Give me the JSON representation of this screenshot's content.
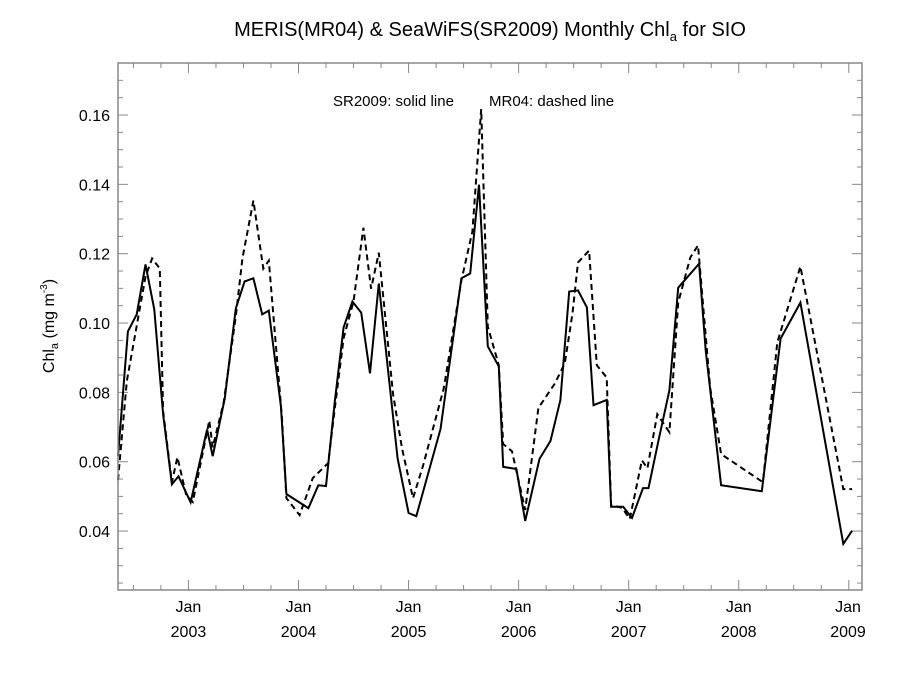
{
  "chart_data": {
    "type": "line",
    "title": "MERIS(MR04) & SeaWiFS(SR2009) Monthly Chl",
    "title_sub": "a",
    "title_tail": " for SIO",
    "annotation_left": "SR2009: solid line",
    "annotation_right": "MR04: dashed line",
    "ylabel_main": "Chl",
    "ylabel_sub": "a",
    "ylabel_units": " (mg m",
    "ylabel_sup": "-3",
    "ylabel_close": ")",
    "ylim": [
      0.023,
      0.175
    ],
    "xlim": [
      2002.36,
      2009.12
    ],
    "yticks": [
      0.04,
      0.06,
      0.08,
      0.1,
      0.12,
      0.14,
      0.16
    ],
    "ytick_labels": [
      "0.04",
      "0.06",
      "0.08",
      "0.10",
      "0.12",
      "0.14",
      "0.16"
    ],
    "yminor_step": 0.005,
    "xticks": [
      2003,
      2004,
      2005,
      2006,
      2007,
      2008,
      2009
    ],
    "xtick_labels": [
      {
        "month": "Jan",
        "year": "2003"
      },
      {
        "month": "Jan",
        "year": "2004"
      },
      {
        "month": "Jan",
        "year": "2005"
      },
      {
        "month": "Jan",
        "year": "2006"
      },
      {
        "month": "Jan",
        "year": "2007"
      },
      {
        "month": "Jan",
        "year": "2008"
      },
      {
        "month": "Jan",
        "year": "2009"
      }
    ],
    "xminor_step": 0.25,
    "grid": false,
    "series": [
      {
        "name": "SR2009",
        "style": "solid",
        "color": "#000000",
        "points": [
          [
            2002.36,
            0.0616
          ],
          [
            2002.45,
            0.0976
          ],
          [
            2002.53,
            0.1025
          ],
          [
            2002.61,
            0.1169
          ],
          [
            2002.69,
            0.1039
          ],
          [
            2002.77,
            0.0737
          ],
          [
            2002.85,
            0.0535
          ],
          [
            2002.91,
            0.0558
          ],
          [
            2003.02,
            0.0483
          ],
          [
            2003.17,
            0.0693
          ],
          [
            2003.22,
            0.0616
          ],
          [
            2003.33,
            0.0783
          ],
          [
            2003.43,
            0.1042
          ],
          [
            2003.51,
            0.112
          ],
          [
            2003.59,
            0.1129
          ],
          [
            2003.67,
            0.1025
          ],
          [
            2003.73,
            0.1036
          ],
          [
            2003.84,
            0.076
          ],
          [
            2003.89,
            0.0507
          ],
          [
            2004.09,
            0.0466
          ],
          [
            2004.18,
            0.0532
          ],
          [
            2004.25,
            0.053
          ],
          [
            2004.33,
            0.0774
          ],
          [
            2004.41,
            0.0987
          ],
          [
            2004.49,
            0.1062
          ],
          [
            2004.57,
            0.103
          ],
          [
            2004.65,
            0.0855
          ],
          [
            2004.73,
            0.1114
          ],
          [
            2004.82,
            0.0846
          ],
          [
            2004.9,
            0.061
          ],
          [
            2005.0,
            0.0452
          ],
          [
            2005.07,
            0.0443
          ],
          [
            2005.29,
            0.0694
          ],
          [
            2005.48,
            0.1129
          ],
          [
            2005.56,
            0.1143
          ],
          [
            2005.64,
            0.1399
          ],
          [
            2005.72,
            0.0933
          ],
          [
            2005.82,
            0.0875
          ],
          [
            2005.86,
            0.0585
          ],
          [
            2005.98,
            0.0579
          ],
          [
            2006.06,
            0.0429
          ],
          [
            2006.19,
            0.0608
          ],
          [
            2006.29,
            0.066
          ],
          [
            2006.38,
            0.0778
          ],
          [
            2006.46,
            0.1091
          ],
          [
            2006.54,
            0.1094
          ],
          [
            2006.62,
            0.1045
          ],
          [
            2006.68,
            0.0763
          ],
          [
            2006.8,
            0.0778
          ],
          [
            2006.84,
            0.047
          ],
          [
            2006.95,
            0.047
          ],
          [
            2007.03,
            0.0438
          ],
          [
            2007.13,
            0.0524
          ],
          [
            2007.18,
            0.0524
          ],
          [
            2007.27,
            0.066
          ],
          [
            2007.37,
            0.0806
          ],
          [
            2007.45,
            0.1102
          ],
          [
            2007.64,
            0.1171
          ],
          [
            2007.7,
            0.0921
          ],
          [
            2007.84,
            0.0532
          ],
          [
            2008.21,
            0.0515
          ],
          [
            2008.38,
            0.0955
          ],
          [
            2008.56,
            0.1059
          ],
          [
            2008.95,
            0.0363
          ],
          [
            2009.03,
            0.0401
          ]
        ]
      },
      {
        "name": "MR04",
        "style": "dashed",
        "color": "#000000",
        "points": [
          [
            2002.36,
            0.0547
          ],
          [
            2002.44,
            0.0832
          ],
          [
            2002.61,
            0.1134
          ],
          [
            2002.67,
            0.1186
          ],
          [
            2002.74,
            0.1157
          ],
          [
            2002.77,
            0.0746
          ],
          [
            2002.85,
            0.0541
          ],
          [
            2002.9,
            0.0613
          ],
          [
            2002.98,
            0.0504
          ],
          [
            2003.04,
            0.0484
          ],
          [
            2003.19,
            0.0719
          ],
          [
            2003.22,
            0.0642
          ],
          [
            2003.32,
            0.0771
          ],
          [
            2003.43,
            0.1019
          ],
          [
            2003.49,
            0.1186
          ],
          [
            2003.59,
            0.1353
          ],
          [
            2003.68,
            0.1157
          ],
          [
            2003.73,
            0.118
          ],
          [
            2003.85,
            0.0725
          ],
          [
            2003.89,
            0.0495
          ],
          [
            2004.01,
            0.0446
          ],
          [
            2004.13,
            0.0553
          ],
          [
            2004.27,
            0.0596
          ],
          [
            2004.33,
            0.0754
          ],
          [
            2004.41,
            0.0956
          ],
          [
            2004.5,
            0.1062
          ],
          [
            2004.59,
            0.1275
          ],
          [
            2004.66,
            0.1099
          ],
          [
            2004.73,
            0.1203
          ],
          [
            2004.86,
            0.0794
          ],
          [
            2004.94,
            0.0639
          ],
          [
            2005.04,
            0.0495
          ],
          [
            2005.13,
            0.0587
          ],
          [
            2005.32,
            0.0812
          ],
          [
            2005.48,
            0.1123
          ],
          [
            2005.58,
            0.1264
          ],
          [
            2005.66,
            0.1617
          ],
          [
            2005.72,
            0.099
          ],
          [
            2005.82,
            0.0878
          ],
          [
            2005.86,
            0.0651
          ],
          [
            2005.94,
            0.063
          ],
          [
            2006.06,
            0.0461
          ],
          [
            2006.18,
            0.0755
          ],
          [
            2006.33,
            0.0826
          ],
          [
            2006.42,
            0.0884
          ],
          [
            2006.49,
            0.1028
          ],
          [
            2006.54,
            0.1175
          ],
          [
            2006.64,
            0.1209
          ],
          [
            2006.71,
            0.0878
          ],
          [
            2006.8,
            0.0843
          ],
          [
            2006.84,
            0.0475
          ],
          [
            2006.94,
            0.0467
          ],
          [
            2007.01,
            0.0435
          ],
          [
            2007.12,
            0.0604
          ],
          [
            2007.17,
            0.0581
          ],
          [
            2007.26,
            0.0737
          ],
          [
            2007.37,
            0.0685
          ],
          [
            2007.45,
            0.1059
          ],
          [
            2007.56,
            0.1189
          ],
          [
            2007.63,
            0.1224
          ],
          [
            2007.74,
            0.0815
          ],
          [
            2007.84,
            0.0622
          ],
          [
            2008.22,
            0.0541
          ],
          [
            2008.35,
            0.0944
          ],
          [
            2008.56,
            0.1163
          ],
          [
            2008.95,
            0.0521
          ],
          [
            2009.03,
            0.0521
          ]
        ]
      }
    ]
  }
}
